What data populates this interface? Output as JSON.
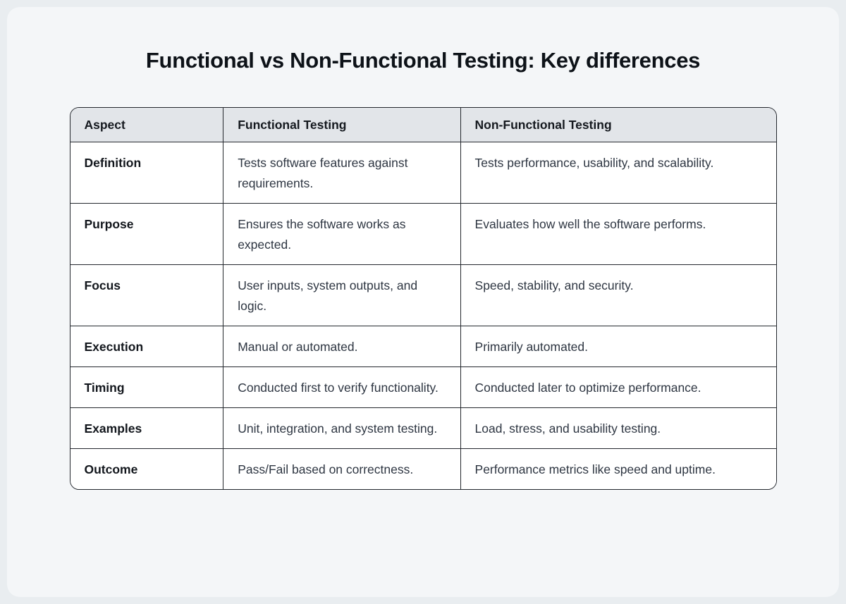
{
  "page": {
    "title": "Functional vs Non-Functional Testing: Key differences"
  },
  "table": {
    "columns": [
      "Aspect",
      "Functional Testing",
      "Non-Functional Testing"
    ],
    "rows": [
      {
        "aspect": "Definition",
        "functional": "Tests software features against requirements.",
        "non_functional": "Tests performance, usability, and scalability."
      },
      {
        "aspect": "Purpose",
        "functional": "Ensures the software works as expected.",
        "non_functional": "Evaluates how well the software performs."
      },
      {
        "aspect": "Focus",
        "functional": "User inputs, system outputs, and logic.",
        "non_functional": "Speed, stability, and security."
      },
      {
        "aspect": "Execution",
        "functional": "Manual or automated.",
        "non_functional": "Primarily automated."
      },
      {
        "aspect": "Timing",
        "functional": "Conducted first to verify functionality.",
        "non_functional": "Conducted later to optimize performance."
      },
      {
        "aspect": "Examples",
        "functional": "Unit, integration, and system testing.",
        "non_functional": "Load, stress, and usability testing."
      },
      {
        "aspect": "Outcome",
        "functional": "Pass/Fail based on correctness.",
        "non_functional": "Performance metrics like speed and uptime."
      }
    ]
  },
  "colors": {
    "page_bg": "#e9edf0",
    "card_bg": "#f4f6f8",
    "header_bg": "#e2e5e9",
    "border": "#23272d",
    "body_text": "#2e3642",
    "heading_text": "#0d1218"
  }
}
